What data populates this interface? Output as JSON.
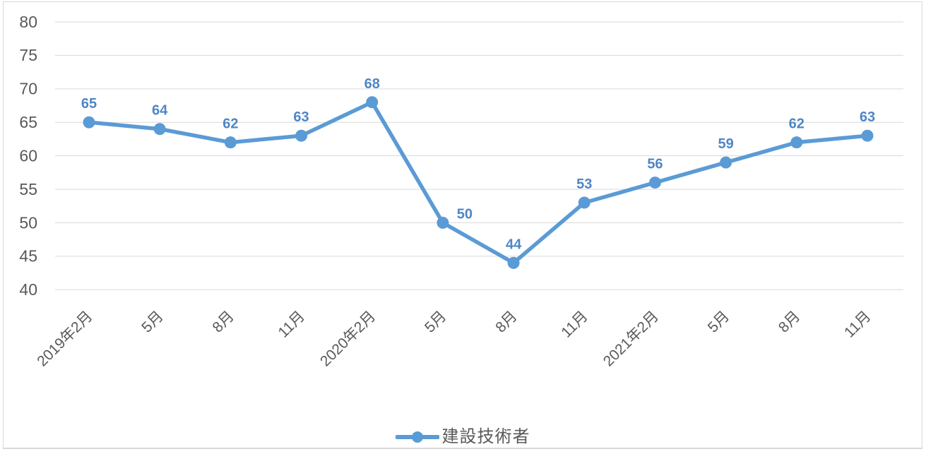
{
  "chart": {
    "background": "#FFFFFF",
    "border_color": "#D9D9D9",
    "grid_color": "#D9D9D9",
    "axis_text_color": "#595959",
    "series_color": "#5B9BD5",
    "data_label_color": "#4E86C5",
    "legend": {
      "label": "建設技術者",
      "marker": "line-with-circle"
    }
  },
  "chart_data": {
    "type": "line",
    "title": "",
    "xlabel": "",
    "ylabel": "",
    "categories": [
      "2019年2月",
      "5月",
      "8月",
      "11月",
      "2020年2月",
      "5月",
      "8月",
      "11月",
      "2021年2月",
      "5月",
      "8月",
      "11月"
    ],
    "series": [
      {
        "name": "建設技術者",
        "values": [
          65,
          64,
          62,
          63,
          68,
          50,
          44,
          53,
          56,
          59,
          62,
          63
        ]
      }
    ],
    "ylim": [
      40,
      80
    ],
    "ytick_step": 5,
    "yticks": [
      80,
      75,
      70,
      65,
      60,
      55,
      50,
      45,
      40
    ],
    "grid": true,
    "legend_position": "bottom",
    "marker": "circle",
    "data_labels": true,
    "xtick_rotation": -45
  }
}
